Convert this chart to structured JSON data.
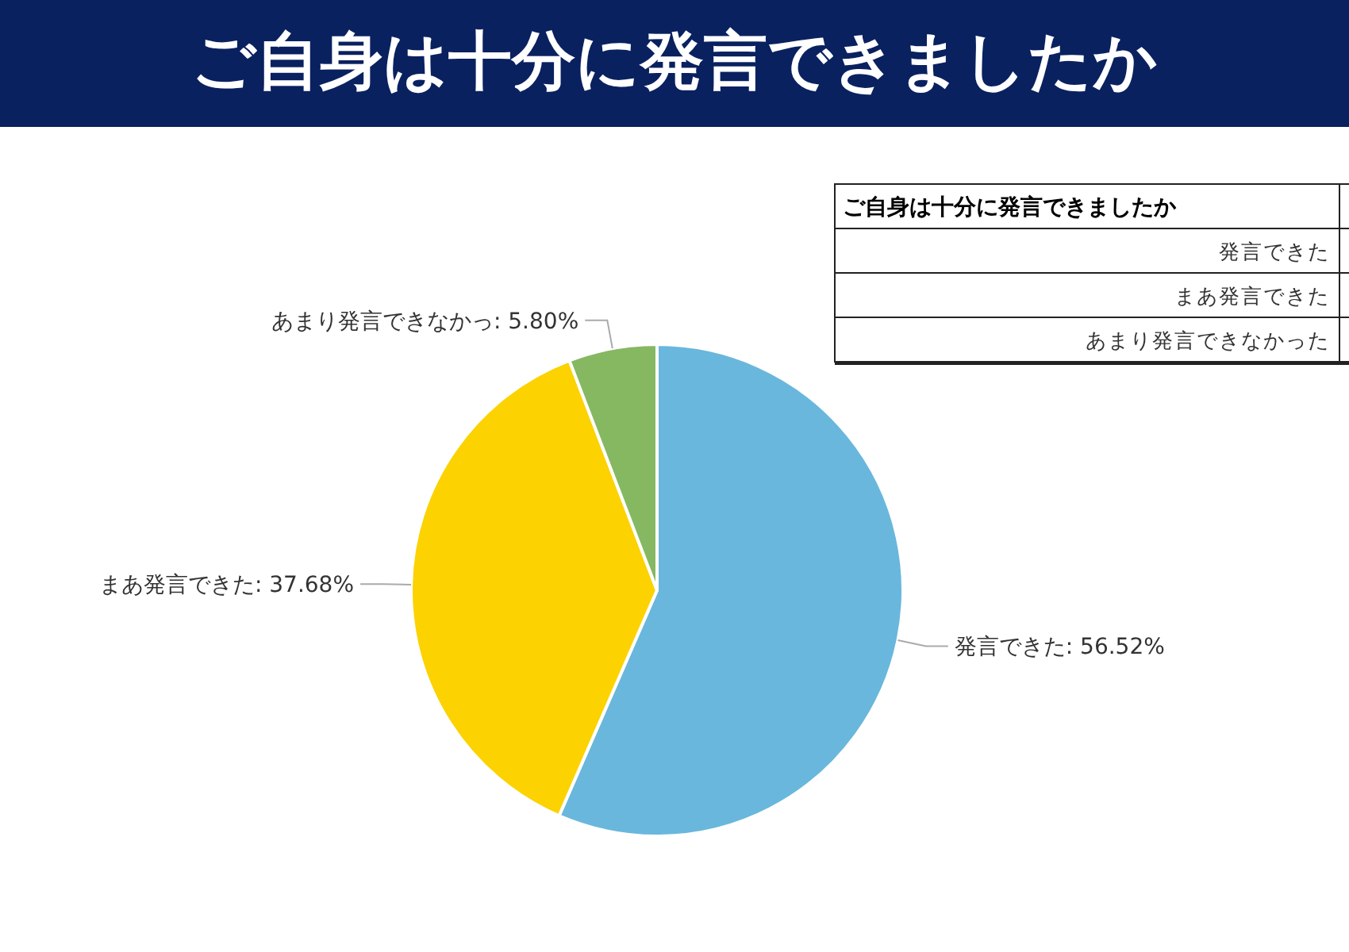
{
  "chart_data": [
    {
      "type": "pie",
      "title": "ご自身は十分に発言できましたか",
      "categories": [
        "発言できた",
        "まあ発言できた",
        "あまり発言できなかっ"
      ],
      "values": [
        56.52,
        37.68,
        5.8
      ],
      "value_labels": [
        ": 56.52%",
        ": 37.68%",
        ": 5.80%"
      ],
      "colors": [
        "#69b7dc",
        "#fcd200",
        "#86b862"
      ]
    },
    {
      "type": "other",
      "annotations": [
        "ご自身は十分に発言できましたか",
        "発言できた",
        "まあ発言できた",
        "あまり発言できなかった"
      ]
    }
  ]
}
